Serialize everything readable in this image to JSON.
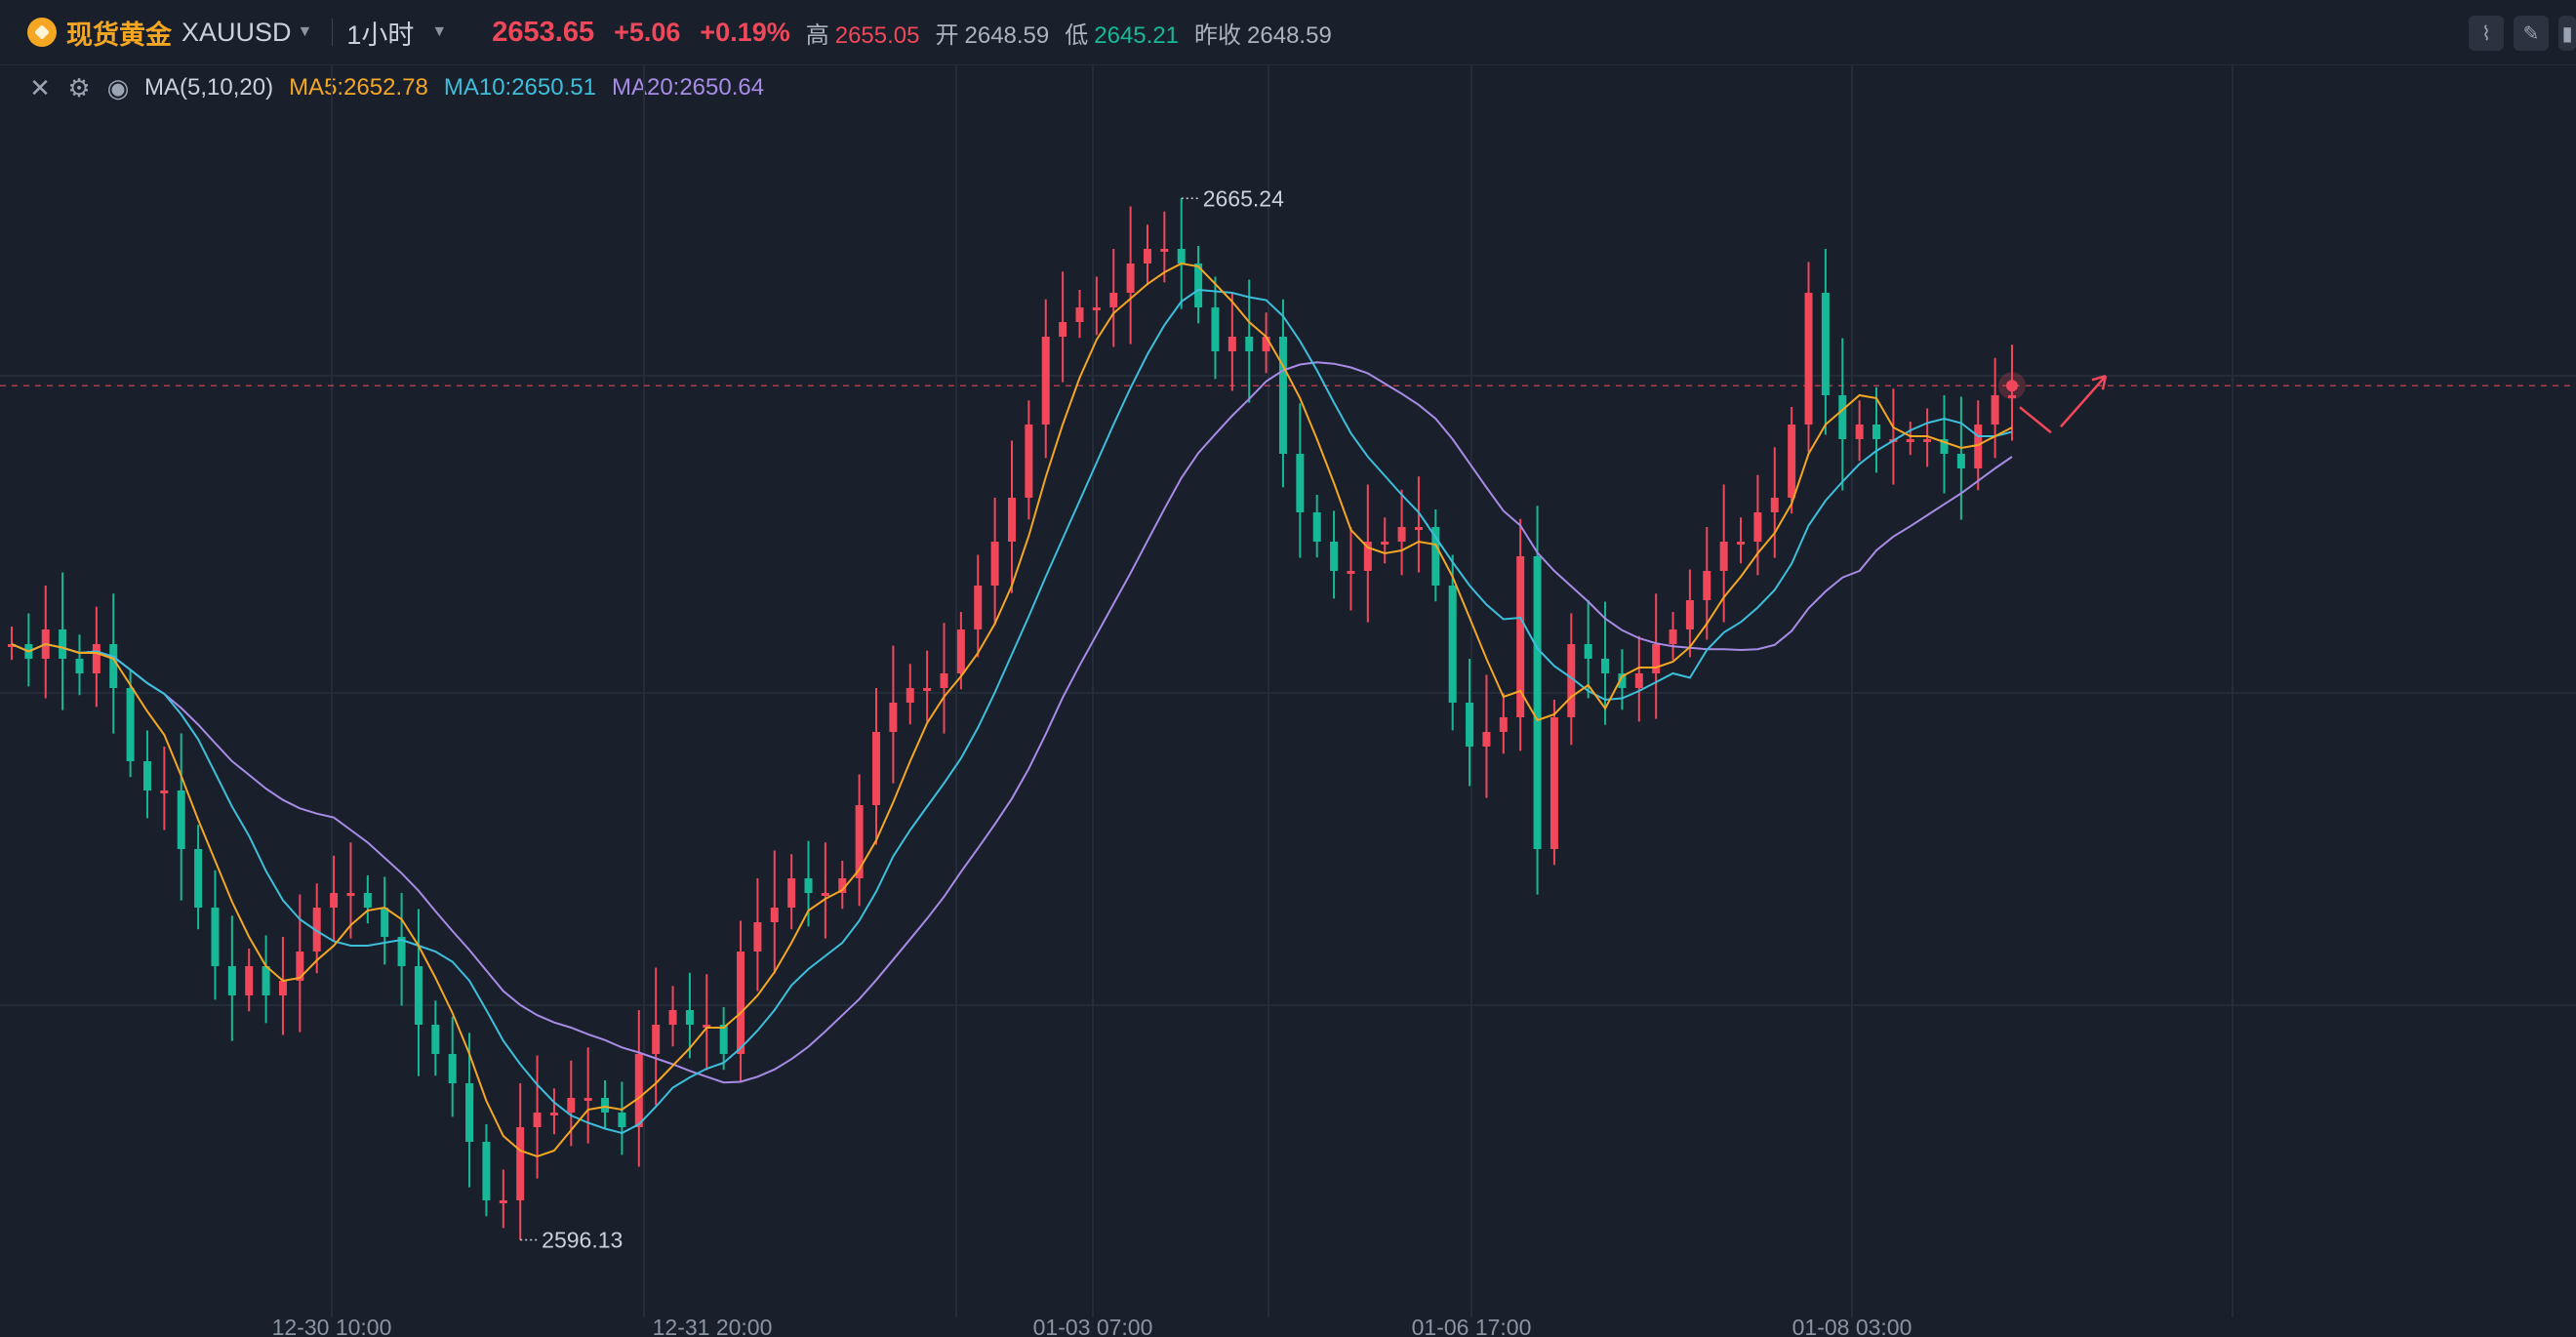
{
  "header": {
    "title_cn": "现货黄金",
    "symbol": "XAUUSD",
    "interval": "1小时",
    "price": "2653.65",
    "change": "+5.06",
    "change_pct": "+0.19%",
    "high_label": "高",
    "high": "2655.05",
    "open_label": "开",
    "open": "2648.59",
    "low_label": "低",
    "low": "2645.21",
    "prev_close_label": "昨收",
    "prev_close": "2648.59"
  },
  "indicator": {
    "name": "MA(5,10,20)",
    "ma5": "MA5:2652.78",
    "ma10": "MA10:2650.51",
    "ma20": "MA20:2650.64"
  },
  "icons": [
    "gold-logo-icon",
    "caret-down-icon",
    "close-icon",
    "settings-icon",
    "eye-icon",
    "line-tool-icon",
    "pencil-icon",
    "candle-icon"
  ],
  "colors": {
    "up": "#f0475a",
    "down": "#17b897",
    "ma5": "#f5a623",
    "ma10": "#3dbfdc",
    "ma20": "#a88be6",
    "background": "#19202b"
  },
  "chart_data": {
    "type": "candlestick",
    "x_ticks": [
      "12-30 10:00",
      "12-31 20:00",
      "01-03 07:00",
      "01-06 17:00",
      "01-08 03:00"
    ],
    "max_label": "2665.24",
    "min_label": "2596.13",
    "ylim": [
      2590,
      2672
    ],
    "current_price": 2653.65,
    "closes": [
      2636,
      2635,
      2637,
      2635,
      2634,
      2636,
      2633,
      2628,
      2626,
      2626,
      2622,
      2618,
      2614,
      2612,
      2614,
      2612,
      2613,
      2615,
      2618,
      2619,
      2619,
      2618,
      2616,
      2614,
      2610,
      2608,
      2606,
      2602,
      2598,
      2598,
      2603,
      2604,
      2604,
      2605,
      2605,
      2604,
      2603,
      2608,
      2610,
      2611,
      2610,
      2610,
      2608,
      2615,
      2617,
      2618,
      2620,
      2619,
      2619,
      2620,
      2625,
      2630,
      2632,
      2633,
      2633,
      2634,
      2637,
      2640,
      2643,
      2646,
      2651,
      2657,
      2658,
      2659,
      2659,
      2660,
      2662,
      2663,
      2663,
      2662,
      2659,
      2656,
      2657,
      2656,
      2657,
      2649,
      2645,
      2643,
      2641,
      2641,
      2643,
      2643,
      2644,
      2644,
      2640,
      2632,
      2629,
      2630,
      2631,
      2642,
      2622,
      2631,
      2636,
      2635,
      2634,
      2633,
      2634,
      2636,
      2637,
      2639,
      2641,
      2643,
      2643,
      2645,
      2646,
      2651,
      2660,
      2653,
      2650,
      2651,
      2650,
      2650,
      2650,
      2650,
      2649,
      2648,
      2651,
      2653,
      2653
    ],
    "opens": [
      2636,
      2636,
      2635,
      2637,
      2635,
      2634,
      2636,
      2633,
      2628,
      2626,
      2626,
      2622,
      2618,
      2614,
      2612,
      2614,
      2612,
      2613,
      2615,
      2618,
      2619,
      2619,
      2618,
      2616,
      2614,
      2610,
      2608,
      2606,
      2602,
      2598,
      2598,
      2603,
      2604,
      2604,
      2605,
      2605,
      2604,
      2603,
      2608,
      2610,
      2611,
      2610,
      2610,
      2608,
      2615,
      2617,
      2618,
      2620,
      2619,
      2619,
      2620,
      2625,
      2630,
      2632,
      2633,
      2633,
      2634,
      2637,
      2640,
      2643,
      2646,
      2651,
      2657,
      2658,
      2659,
      2659,
      2660,
      2662,
      2663,
      2663,
      2662,
      2659,
      2656,
      2657,
      2656,
      2657,
      2649,
      2645,
      2643,
      2641,
      2641,
      2643,
      2643,
      2644,
      2644,
      2640,
      2632,
      2629,
      2630,
      2631,
      2642,
      2622,
      2631,
      2636,
      2635,
      2634,
      2633,
      2634,
      2636,
      2637,
      2639,
      2641,
      2643,
      2643,
      2645,
      2646,
      2651,
      2660,
      2653,
      2650,
      2651,
      2650,
      2650,
      2650,
      2650,
      2649,
      2648,
      2651,
      2653
    ],
    "ma_series": [
      "MA5",
      "MA10",
      "MA20"
    ]
  }
}
